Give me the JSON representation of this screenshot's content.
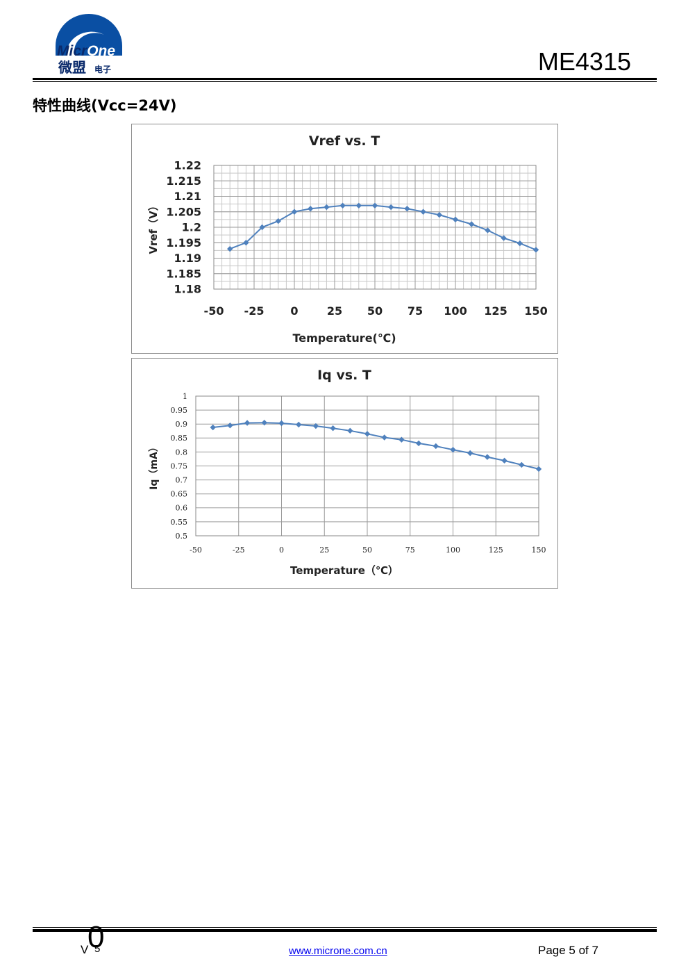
{
  "header": {
    "logo_text_en_1": "Micr",
    "logo_text_en_2": "One",
    "logo_text_cn": "微盟",
    "logo_text_cn_small": "电子",
    "part_number": "ME4315"
  },
  "section_title": "特性曲线(Vcc=24V)",
  "chart_data": [
    {
      "type": "line",
      "title": "Vref vs. T",
      "xlabel": "Temperature(℃)",
      "ylabel": "Vref（V）",
      "xlim": [
        -50,
        150
      ],
      "ylim": [
        1.18,
        1.22
      ],
      "x_ticks": [
        "-50",
        "-25",
        "0",
        "25",
        "50",
        "75",
        "100",
        "125",
        "150"
      ],
      "y_ticks": [
        "1.18",
        "1.185",
        "1.19",
        "1.195",
        "1.2",
        "1.205",
        "1.21",
        "1.215",
        "1.22"
      ],
      "grid": true,
      "x": [
        -40,
        -30,
        -20,
        -10,
        0,
        10,
        20,
        30,
        40,
        50,
        60,
        70,
        80,
        90,
        100,
        110,
        120,
        130,
        140,
        150
      ],
      "y": [
        1.193,
        1.195,
        1.2,
        1.202,
        1.205,
        1.206,
        1.2065,
        1.207,
        1.207,
        1.207,
        1.2065,
        1.206,
        1.205,
        1.204,
        1.2025,
        1.201,
        1.199,
        1.1965,
        1.1948,
        1.1927
      ],
      "color": "#4f81bd"
    },
    {
      "type": "line",
      "title": "Iq vs. T",
      "xlabel": "Temperature（℃）",
      "ylabel": "Iq（mA）",
      "xlim": [
        -50,
        150
      ],
      "ylim": [
        0.5,
        1
      ],
      "x_ticks": [
        "-50",
        "-25",
        "0",
        "25",
        "50",
        "75",
        "100",
        "125",
        "150"
      ],
      "y_ticks": [
        "0.5",
        "0.55",
        "0.6",
        "0.65",
        "0.7",
        "0.75",
        "0.8",
        "0.85",
        "0.9",
        "0.95",
        "1"
      ],
      "grid": true,
      "x": [
        -40,
        -30,
        -20,
        -10,
        0,
        10,
        20,
        30,
        40,
        50,
        60,
        70,
        80,
        90,
        100,
        110,
        120,
        130,
        140,
        150
      ],
      "y": [
        0.888,
        0.895,
        0.904,
        0.905,
        0.903,
        0.898,
        0.893,
        0.885,
        0.876,
        0.865,
        0.852,
        0.844,
        0.831,
        0.821,
        0.808,
        0.796,
        0.782,
        0.769,
        0.754,
        0.739
      ],
      "color": "#4f81bd"
    }
  ],
  "footer": {
    "version": "V",
    "version_big": "0",
    "version_sub": "5",
    "website": "www.microne.com.cn",
    "page": "Page 5 of 7"
  }
}
